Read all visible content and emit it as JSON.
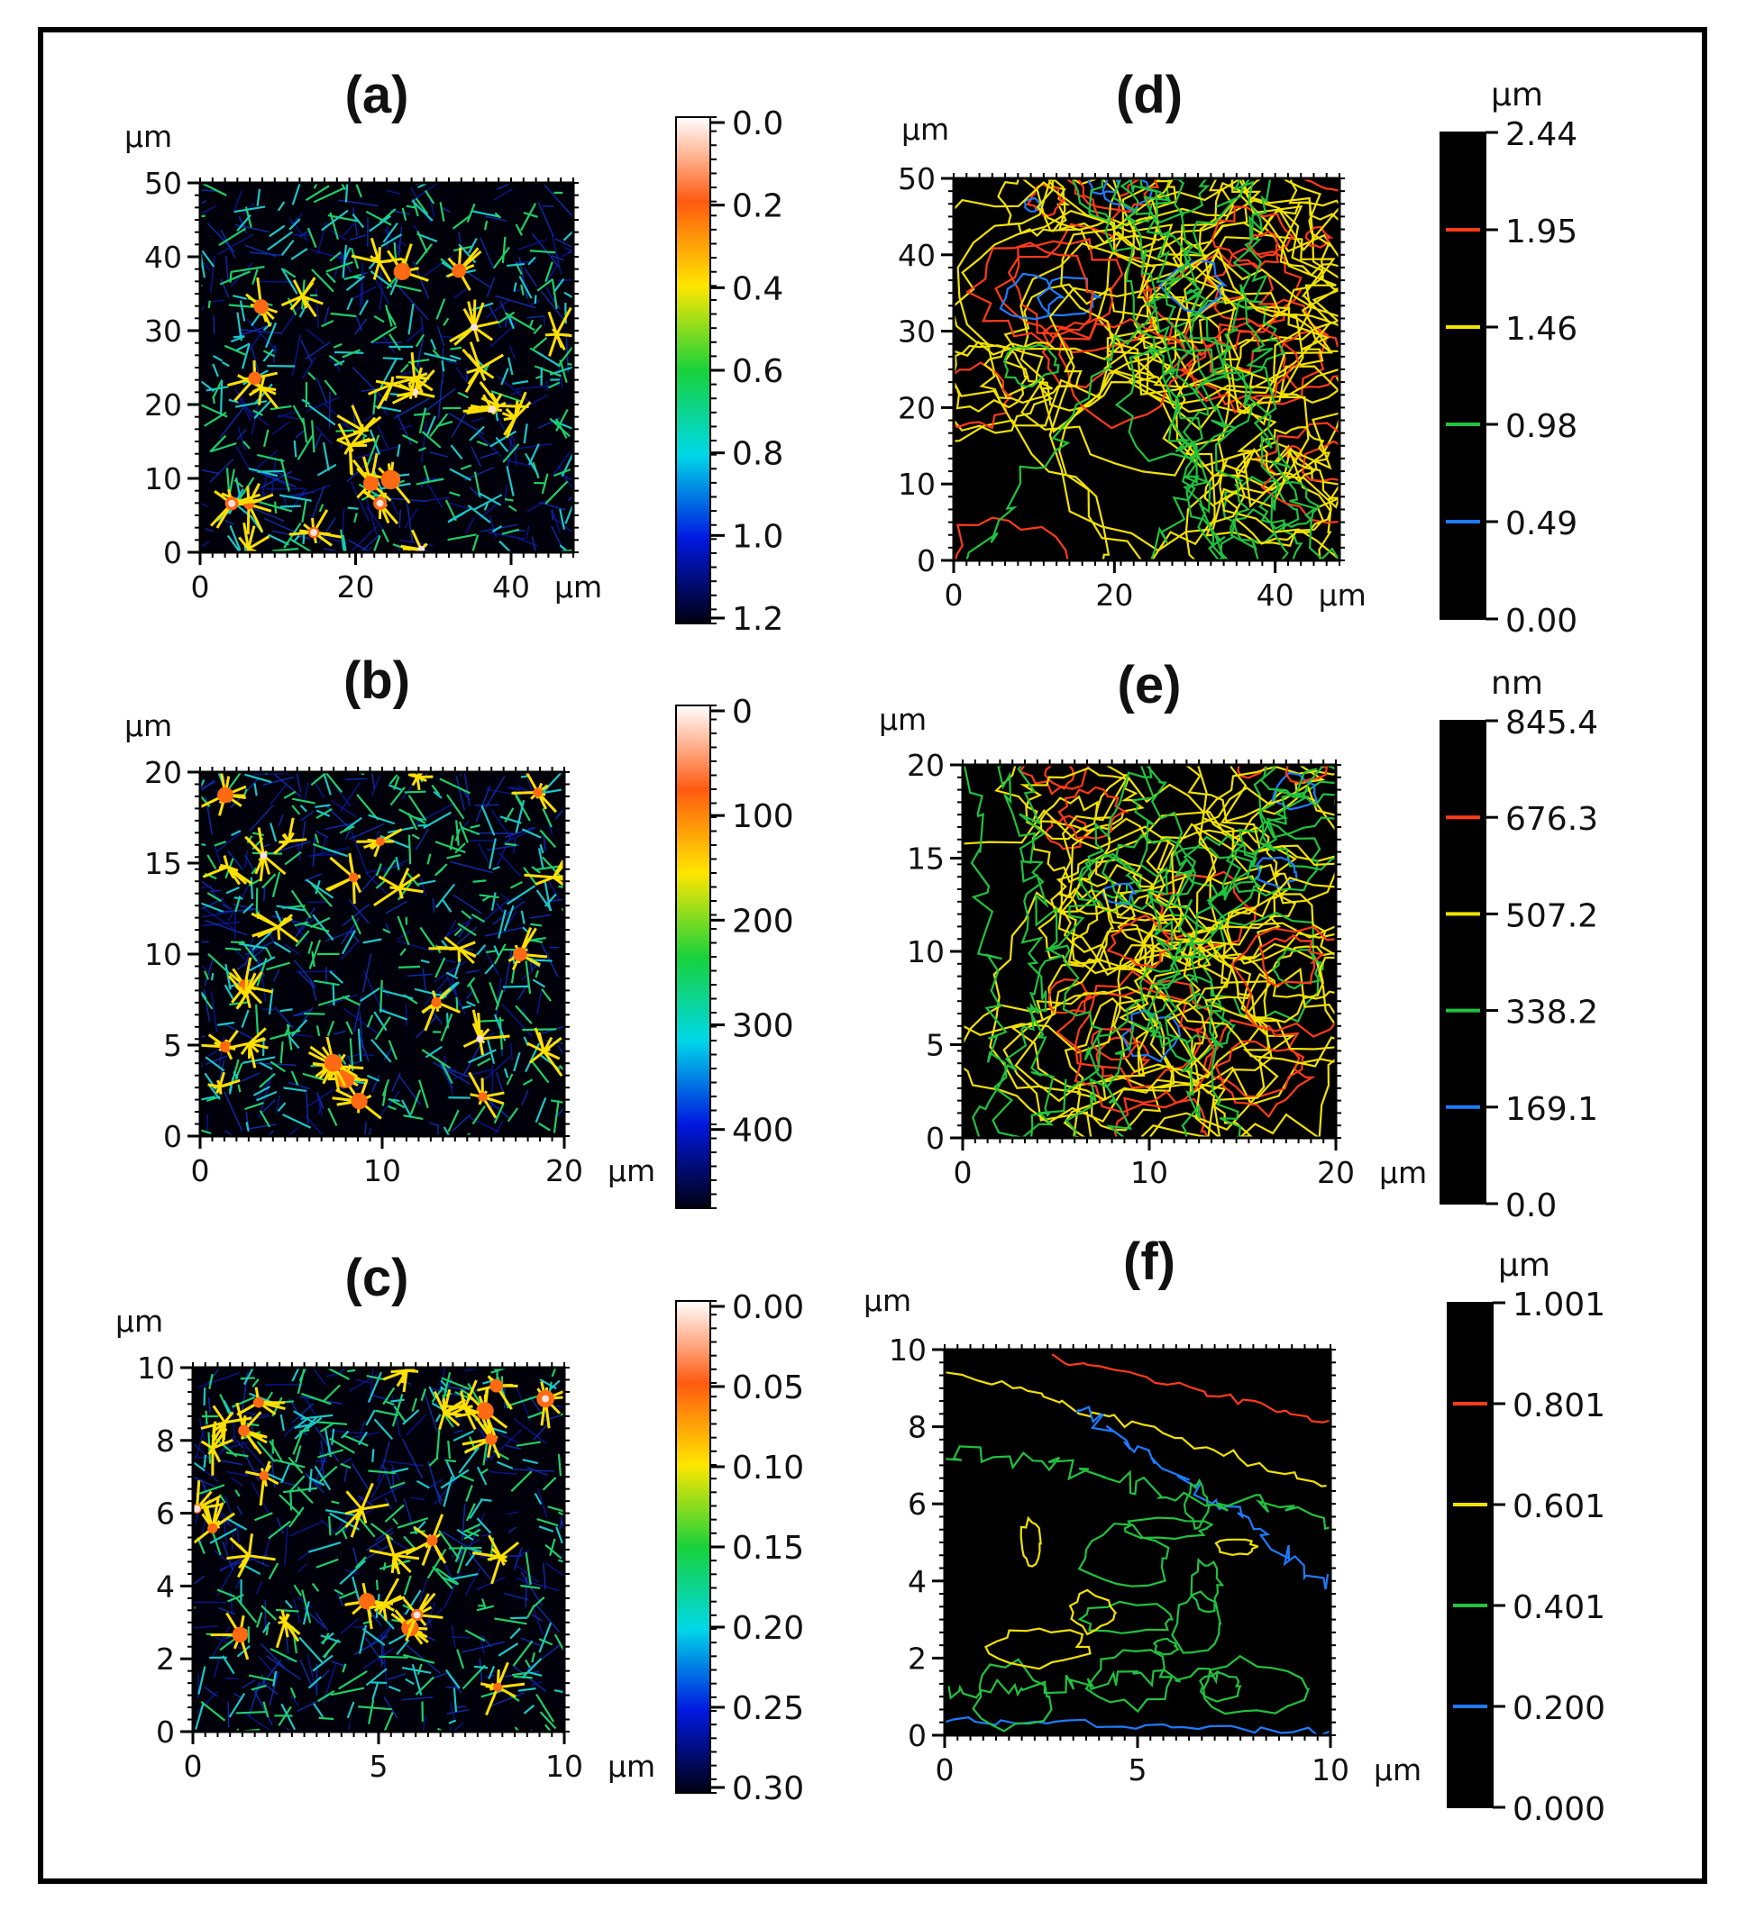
{
  "figure": {
    "panels": [
      {
        "id": "a",
        "label": "(a)",
        "kind": "heatmap",
        "x_unit": "µm",
        "y_unit": "µm",
        "x_ticks": [
          "0",
          "20",
          "40"
        ],
        "y_ticks": [
          "50",
          "40",
          "30",
          "20",
          "10",
          "0"
        ],
        "colorbar": {
          "unit": "",
          "labels": [
            "0.0",
            "0.2",
            "0.4",
            "0.6",
            "0.8",
            "1.0",
            "1.2"
          ]
        }
      },
      {
        "id": "b",
        "label": "(b)",
        "kind": "heatmap",
        "x_unit": "µm",
        "y_unit": "µm",
        "x_ticks": [
          "0",
          "10",
          "20"
        ],
        "y_ticks": [
          "20",
          "15",
          "10",
          "5",
          "0"
        ],
        "colorbar": {
          "unit": "",
          "labels": [
            "0",
            "100",
            "200",
            "300",
            "400"
          ]
        }
      },
      {
        "id": "c",
        "label": "(c)",
        "kind": "heatmap",
        "x_unit": "µm",
        "y_unit": "µm",
        "x_ticks": [
          "0",
          "5",
          "10"
        ],
        "y_ticks": [
          "10",
          "8",
          "6",
          "4",
          "2",
          "0"
        ],
        "colorbar": {
          "unit": "",
          "labels": [
            "0.00",
            "0.05",
            "0.10",
            "0.15",
            "0.20",
            "0.25",
            "0.30"
          ]
        }
      },
      {
        "id": "d",
        "label": "(d)",
        "kind": "contour",
        "x_unit": "µm",
        "y_unit": "µm",
        "x_ticks": [
          "0",
          "20",
          "40"
        ],
        "y_ticks": [
          "50",
          "40",
          "30",
          "20",
          "10",
          "0"
        ],
        "colorbar": {
          "unit": "µm",
          "labels": [
            "2.44",
            "1.95",
            "1.46",
            "0.98",
            "0.49",
            "0.00"
          ]
        }
      },
      {
        "id": "e",
        "label": "(e)",
        "kind": "contour",
        "x_unit": "µm",
        "y_unit": "µm",
        "x_ticks": [
          "0",
          "10",
          "20"
        ],
        "y_ticks": [
          "20",
          "15",
          "10",
          "5",
          "0"
        ],
        "colorbar": {
          "unit": "nm",
          "labels": [
            "845.4",
            "676.3",
            "507.2",
            "338.2",
            "169.1",
            "0.0"
          ]
        }
      },
      {
        "id": "f",
        "label": "(f)",
        "kind": "contour",
        "x_unit": "µm",
        "y_unit": "µm",
        "x_ticks": [
          "0",
          "5",
          "10"
        ],
        "y_ticks": [
          "10",
          "8",
          "6",
          "4",
          "2",
          "0"
        ],
        "colorbar": {
          "unit": "µm",
          "labels": [
            "1.001",
            "0.801",
            "0.601",
            "0.401",
            "0.200",
            "0.000"
          ]
        }
      }
    ],
    "colors": {
      "contour_levels": [
        "#ff3b1a",
        "#f2e200",
        "#21c23f",
        "#1e7bff"
      ],
      "heat_stops": [
        "#ffffff",
        "#ff5a10",
        "#ffe600",
        "#18d23a",
        "#00d8e8",
        "#0018e0",
        "#000010"
      ]
    }
  }
}
